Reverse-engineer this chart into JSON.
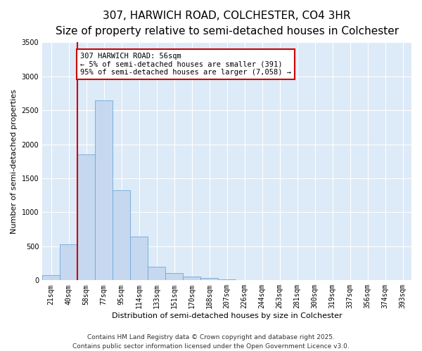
{
  "title": "307, HARWICH ROAD, COLCHESTER, CO4 3HR",
  "subtitle": "Size of property relative to semi-detached houses in Colchester",
  "xlabel": "Distribution of semi-detached houses by size in Colchester",
  "ylabel": "Number of semi-detached properties",
  "bin_labels": [
    "21sqm",
    "40sqm",
    "58sqm",
    "77sqm",
    "95sqm",
    "114sqm",
    "133sqm",
    "151sqm",
    "170sqm",
    "188sqm",
    "207sqm",
    "226sqm",
    "244sqm",
    "263sqm",
    "281sqm",
    "300sqm",
    "319sqm",
    "337sqm",
    "356sqm",
    "374sqm",
    "393sqm"
  ],
  "bar_heights": [
    75,
    530,
    1850,
    2650,
    1320,
    640,
    200,
    110,
    50,
    30,
    15,
    8,
    5,
    3,
    2,
    1,
    1,
    0,
    0,
    0,
    0
  ],
  "bar_color": "#c5d8f0",
  "bar_edge_color": "#6fa8d8",
  "background_color": "#ddeaf7",
  "ylim": [
    0,
    3500
  ],
  "yticks": [
    0,
    500,
    1000,
    1500,
    2000,
    2500,
    3000,
    3500
  ],
  "vline_x": 1.5,
  "vline_color": "#cc0000",
  "annotation_title": "307 HARWICH ROAD: 56sqm",
  "annotation_line1": "← 5% of semi-detached houses are smaller (391)",
  "annotation_line2": "95% of semi-detached houses are larger (7,058) →",
  "annotation_box_color": "#cc0000",
  "footer_line1": "Contains HM Land Registry data © Crown copyright and database right 2025.",
  "footer_line2": "Contains public sector information licensed under the Open Government Licence v3.0.",
  "title_fontsize": 11,
  "subtitle_fontsize": 9,
  "axis_label_fontsize": 8,
  "tick_fontsize": 7,
  "annotation_fontsize": 7.5,
  "footer_fontsize": 6.5
}
